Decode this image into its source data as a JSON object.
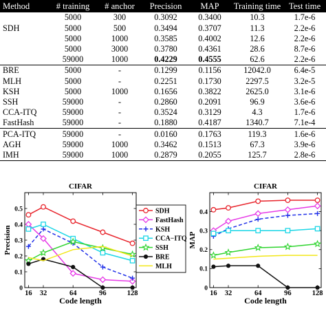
{
  "table": {
    "headers": [
      "Method",
      "# training",
      "# anchor",
      "Precision",
      "MAP",
      "Training time",
      "Test time"
    ],
    "rows": [
      {
        "method": "",
        "training": "5000",
        "anchor": "300",
        "precision": "0.3092",
        "map": "0.3400",
        "train_time": "10.3",
        "test_time": "1.7e-6",
        "group_start": false,
        "bold_prec": false,
        "bold_map": false
      },
      {
        "method": "SDH",
        "training": "5000",
        "anchor": "500",
        "precision": "0.3494",
        "map": "0.3707",
        "train_time": "11.3",
        "test_time": "2.2e-6",
        "group_start": false,
        "bold_prec": false,
        "bold_map": false
      },
      {
        "method": "",
        "training": "5000",
        "anchor": "1000",
        "precision": "0.3585",
        "map": "0.4002",
        "train_time": "12.6",
        "test_time": "2.2e-6",
        "group_start": false,
        "bold_prec": false,
        "bold_map": false
      },
      {
        "method": "",
        "training": "5000",
        "anchor": "3000",
        "precision": "0.3780",
        "map": "0.4361",
        "train_time": "28.6",
        "test_time": "8.7e-6",
        "group_start": false,
        "bold_prec": false,
        "bold_map": false
      },
      {
        "method": "",
        "training": "59000",
        "anchor": "1000",
        "precision": "0.4229",
        "map": "0.4555",
        "train_time": "62.6",
        "test_time": "2.2e-6",
        "group_start": false,
        "bold_prec": true,
        "bold_map": true
      },
      {
        "method": "BRE",
        "training": "5000",
        "anchor": "-",
        "precision": "0.1299",
        "map": "0.1156",
        "train_time": "12042.0",
        "test_time": "6.4e-5",
        "group_start": true,
        "bold_prec": false,
        "bold_map": false
      },
      {
        "method": "MLH",
        "training": "5000",
        "anchor": "-",
        "precision": "0.2251",
        "map": "0.1730",
        "train_time": "2297.5",
        "test_time": "3.2e-5",
        "group_start": false,
        "bold_prec": false,
        "bold_map": false
      },
      {
        "method": "KSH",
        "training": "5000",
        "anchor": "1000",
        "precision": "0.1656",
        "map": "0.3822",
        "train_time": "2625.0",
        "test_time": "3.1e-6",
        "group_start": false,
        "bold_prec": false,
        "bold_map": false
      },
      {
        "method": "SSH",
        "training": "59000",
        "anchor": "-",
        "precision": "0.2860",
        "map": "0.2091",
        "train_time": "96.9",
        "test_time": "3.6e-6",
        "group_start": false,
        "bold_prec": false,
        "bold_map": false
      },
      {
        "method": "CCA-ITQ",
        "training": "59000",
        "anchor": "-",
        "precision": "0.3524",
        "map": "0.3129",
        "train_time": "4.3",
        "test_time": "1.7e-6",
        "group_start": false,
        "bold_prec": false,
        "bold_map": false
      },
      {
        "method": "FastHash",
        "training": "59000",
        "anchor": "-",
        "precision": "0.1880",
        "map": "0.4187",
        "train_time": "1340.7",
        "test_time": "7.1e-4",
        "group_start": false,
        "bold_prec": false,
        "bold_map": false
      },
      {
        "method": "PCA-ITQ",
        "training": "59000",
        "anchor": "-",
        "precision": "0.0160",
        "map": "0.1763",
        "train_time": "119.3",
        "test_time": "1.6e-6",
        "group_start": true,
        "bold_prec": false,
        "bold_map": false
      },
      {
        "method": "AGH",
        "training": "59000",
        "anchor": "1000",
        "precision": "0.3462",
        "map": "0.1513",
        "train_time": "67.3",
        "test_time": "3.9e-6",
        "group_start": false,
        "bold_prec": false,
        "bold_map": false
      },
      {
        "method": "IMH",
        "training": "59000",
        "anchor": "1000",
        "precision": "0.2879",
        "map": "0.2055",
        "train_time": "125.7",
        "test_time": "2.8e-6",
        "group_start": false,
        "bold_prec": false,
        "bold_map": false
      }
    ]
  },
  "chart_data": [
    {
      "type": "line",
      "title": "CIFAR",
      "xlabel": "Code length",
      "ylabel": "Precision",
      "x": [
        16,
        32,
        64,
        96,
        128
      ],
      "xticks": [
        16,
        32,
        64,
        96,
        128
      ],
      "xlim": [
        12,
        132
      ],
      "ylim": [
        0,
        0.6
      ],
      "yticks": [
        0,
        0.1,
        0.2,
        0.3,
        0.4,
        0.5
      ],
      "legend_position": "right",
      "series": [
        {
          "name": "SDH",
          "color": "#e8232b",
          "marker": "circle",
          "dash": "",
          "values": [
            0.46,
            0.51,
            0.42,
            0.35,
            0.28
          ]
        },
        {
          "name": "FastHash",
          "color": "#e63ae6",
          "marker": "diamond",
          "dash": "",
          "values": [
            0.4,
            0.31,
            0.09,
            0.05,
            0.04
          ]
        },
        {
          "name": "KSH",
          "color": "#1f2fe8",
          "marker": "plus",
          "dash": "5,3",
          "values": [
            0.26,
            0.37,
            0.28,
            0.13,
            0.06
          ]
        },
        {
          "name": "CCA−ITQ",
          "color": "#19d6e6",
          "marker": "square",
          "dash": "",
          "values": [
            0.37,
            0.4,
            0.31,
            0.22,
            0.17
          ]
        },
        {
          "name": "SSH",
          "color": "#2ed42e",
          "marker": "star",
          "dash": "",
          "values": [
            0.17,
            0.22,
            0.29,
            0.25,
            0.21
          ]
        },
        {
          "name": "BRE",
          "color": "#111111",
          "marker": "dot",
          "dash": "",
          "values": [
            0.15,
            0.18,
            0.13,
            0.0,
            0.0
          ]
        },
        {
          "name": "MLH",
          "color": "#f2e617",
          "marker": "none",
          "dash": "",
          "values": [
            0.19,
            0.17,
            0.24,
            0.26,
            0.2
          ]
        }
      ]
    },
    {
      "type": "line",
      "title": "CIFAR",
      "xlabel": "Code length",
      "ylabel": "MAP",
      "x": [
        16,
        32,
        64,
        96,
        128
      ],
      "xticks": [
        16,
        32,
        64,
        96,
        128
      ],
      "xlim": [
        12,
        132
      ],
      "ylim": [
        0,
        0.5
      ],
      "yticks": [
        0,
        0.1,
        0.2,
        0.3,
        0.4
      ],
      "series": [
        {
          "name": "SDH",
          "color": "#e8232b",
          "marker": "circle",
          "dash": "",
          "values": [
            0.41,
            0.42,
            0.455,
            0.46,
            0.46
          ]
        },
        {
          "name": "FastHash",
          "color": "#e63ae6",
          "marker": "diamond",
          "dash": "",
          "values": [
            0.3,
            0.35,
            0.39,
            0.41,
            0.43
          ]
        },
        {
          "name": "KSH",
          "color": "#1f2fe8",
          "marker": "plus",
          "dash": "5,3",
          "values": [
            0.27,
            0.31,
            0.36,
            0.38,
            0.39
          ]
        },
        {
          "name": "CCA−ITQ",
          "color": "#19d6e6",
          "marker": "square",
          "dash": "",
          "values": [
            0.285,
            0.3,
            0.3,
            0.3,
            0.31
          ]
        },
        {
          "name": "SSH",
          "color": "#2ed42e",
          "marker": "star",
          "dash": "",
          "values": [
            0.17,
            0.185,
            0.21,
            0.215,
            0.23
          ]
        },
        {
          "name": "BRE",
          "color": "#111111",
          "marker": "dot",
          "dash": "",
          "values": [
            0.11,
            0.115,
            0.115,
            0.0,
            0.0
          ]
        },
        {
          "name": "MLH",
          "color": "#f2e617",
          "marker": "none",
          "dash": "",
          "values": [
            0.15,
            0.155,
            0.165,
            0.17,
            0.17
          ]
        }
      ]
    }
  ]
}
